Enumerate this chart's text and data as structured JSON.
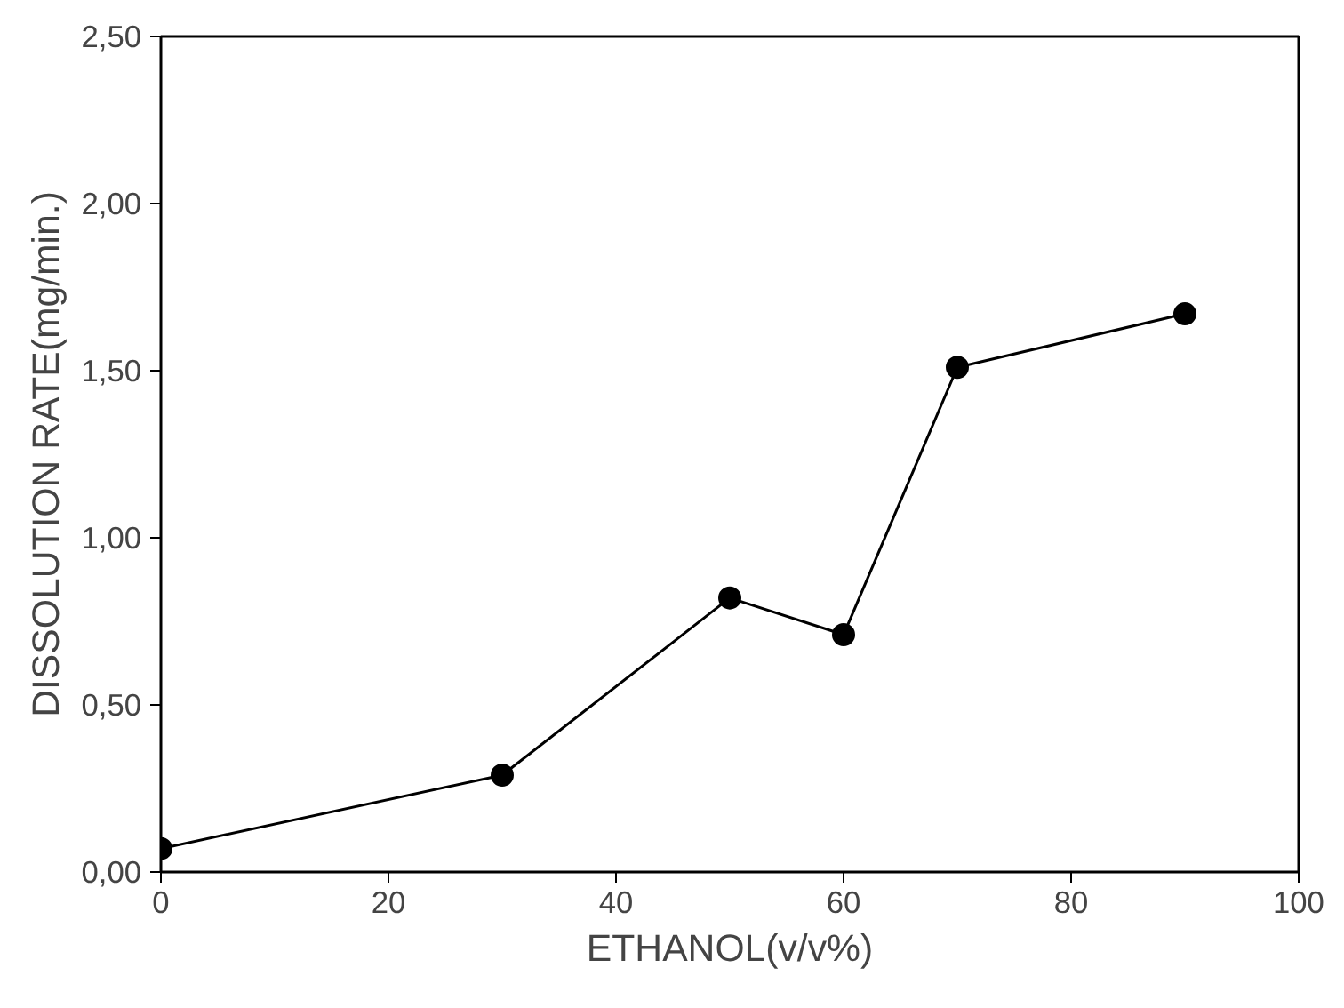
{
  "chart_data": {
    "type": "line",
    "xlabel": "ETHANOL(v/v%)",
    "ylabel": "DISSOLUTION RATE(mg/min.)",
    "x": [
      0,
      30,
      50,
      60,
      70,
      90
    ],
    "series": [
      {
        "color": "#000000",
        "values": [
          0.07,
          0.29,
          0.82,
          0.71,
          1.51,
          1.67
        ]
      }
    ],
    "xlim": [
      0,
      100
    ],
    "xticks": [
      0,
      20,
      40,
      60,
      80,
      100
    ],
    "ylim": [
      0,
      2.5
    ],
    "yticks": [
      {
        "value": 0,
        "label": "0,00"
      },
      {
        "value": 0.5,
        "label": "0,50"
      },
      {
        "value": 1.0,
        "label": "1,00"
      },
      {
        "value": 1.5,
        "label": "1,50"
      },
      {
        "value": 2.0,
        "label": "2,00"
      },
      {
        "value": 2.5,
        "label": "2,50"
      }
    ],
    "grid": false,
    "marker": "circle",
    "line_style": "solid"
  }
}
